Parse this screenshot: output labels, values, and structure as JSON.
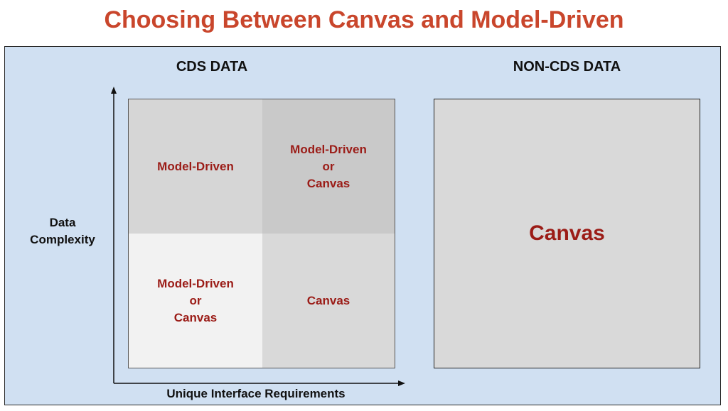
{
  "title": "Choosing Between Canvas and Model-Driven",
  "cds": {
    "heading": "CDS DATA",
    "cells": {
      "top_left": "Model-Driven",
      "top_right": [
        "Model-Driven",
        "or",
        "Canvas"
      ],
      "bottom_left": [
        "Model-Driven",
        "or",
        "Canvas"
      ],
      "bottom_right": "Canvas"
    },
    "y_axis_label": [
      "Data",
      "Complexity"
    ],
    "x_axis_label": "Unique Interface Requirements"
  },
  "noncds": {
    "heading": "NON-CDS DATA",
    "label": "Canvas"
  },
  "colors": {
    "title": "#c9462c",
    "label": "#9b1c17",
    "panel": "#d0e0f2",
    "cell_top_left": "#d6d6d6",
    "cell_top_right": "#c9c9c9",
    "cell_bottom_left": "#f2f2f2",
    "cell_bottom_right": "#d9d9d9"
  }
}
